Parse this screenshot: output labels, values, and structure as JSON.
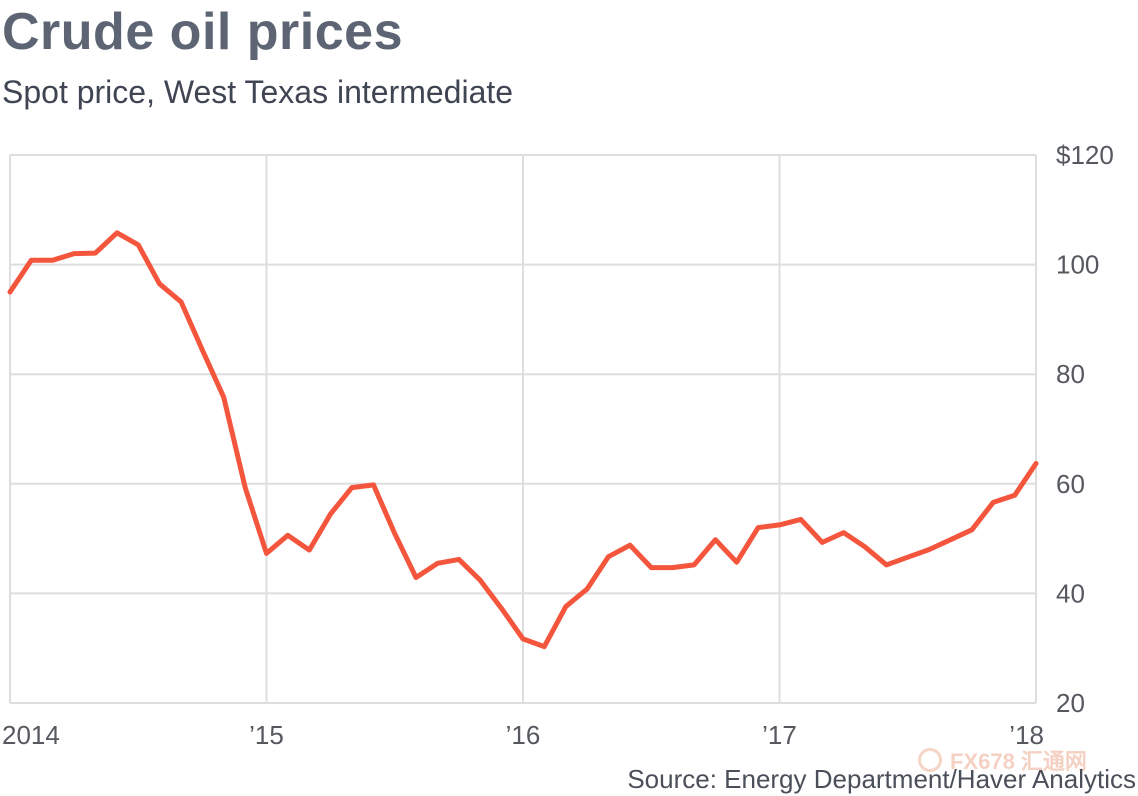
{
  "header": {
    "title": "Crude oil prices",
    "subtitle": "Spot price, West Texas intermediate"
  },
  "footer": {
    "source": "Source: Energy Department/Haver Analytics",
    "watermark": "FX678 汇通网"
  },
  "colors": {
    "line": "#f4563d",
    "grid": "#dedede",
    "tick_text": "#55585f"
  },
  "chart_data": {
    "type": "line",
    "title": "Crude oil prices",
    "subtitle": "Spot price, West Texas intermediate",
    "xlabel": "",
    "ylabel": "",
    "x_tick_labels": [
      "2014",
      "’15",
      "’16",
      "’17",
      "’18"
    ],
    "y_tick_labels": [
      "$120",
      "100",
      "80",
      "60",
      "40",
      "20"
    ],
    "y_ticks": [
      120,
      100,
      80,
      60,
      40,
      20
    ],
    "xlim": [
      2014.0,
      2018.0
    ],
    "ylim": [
      20,
      120
    ],
    "grid": true,
    "y_axis_side": "right",
    "series": [
      {
        "x": [
          2014.0,
          2014.083,
          2014.167,
          2014.25,
          2014.333,
          2014.417,
          2014.5,
          2014.583,
          2014.667,
          2014.75,
          2014.833,
          2014.917,
          2015.0,
          2015.083,
          2015.167,
          2015.25,
          2015.333,
          2015.417,
          2015.5,
          2015.583,
          2015.667,
          2015.75,
          2015.833,
          2015.917,
          2016.0,
          2016.083,
          2016.167,
          2016.25,
          2016.333,
          2016.417,
          2016.5,
          2016.583,
          2016.667,
          2016.75,
          2016.833,
          2016.917,
          2017.0,
          2017.083,
          2017.167,
          2017.25,
          2017.333,
          2017.417,
          2017.5,
          2017.583,
          2017.667,
          2017.75,
          2017.833,
          2017.917,
          2018.0
        ],
        "values": [
          95,
          100.8,
          100.8,
          102,
          102.1,
          105.8,
          103.6,
          96.5,
          93.2,
          84.4,
          75.8,
          59.3,
          47.3,
          50.6,
          47.9,
          54.5,
          59.3,
          59.8,
          50.9,
          42.9,
          45.5,
          46.2,
          42.4,
          37.2,
          31.7,
          30.3,
          37.6,
          40.8,
          46.7,
          48.8,
          44.7,
          44.7,
          45.2,
          49.8,
          45.7,
          52.0,
          52.5,
          53.5,
          49.3,
          51.1,
          48.5,
          45.2,
          46.6,
          48.0,
          49.8,
          51.6,
          56.6,
          57.9,
          63.7
        ]
      }
    ]
  }
}
